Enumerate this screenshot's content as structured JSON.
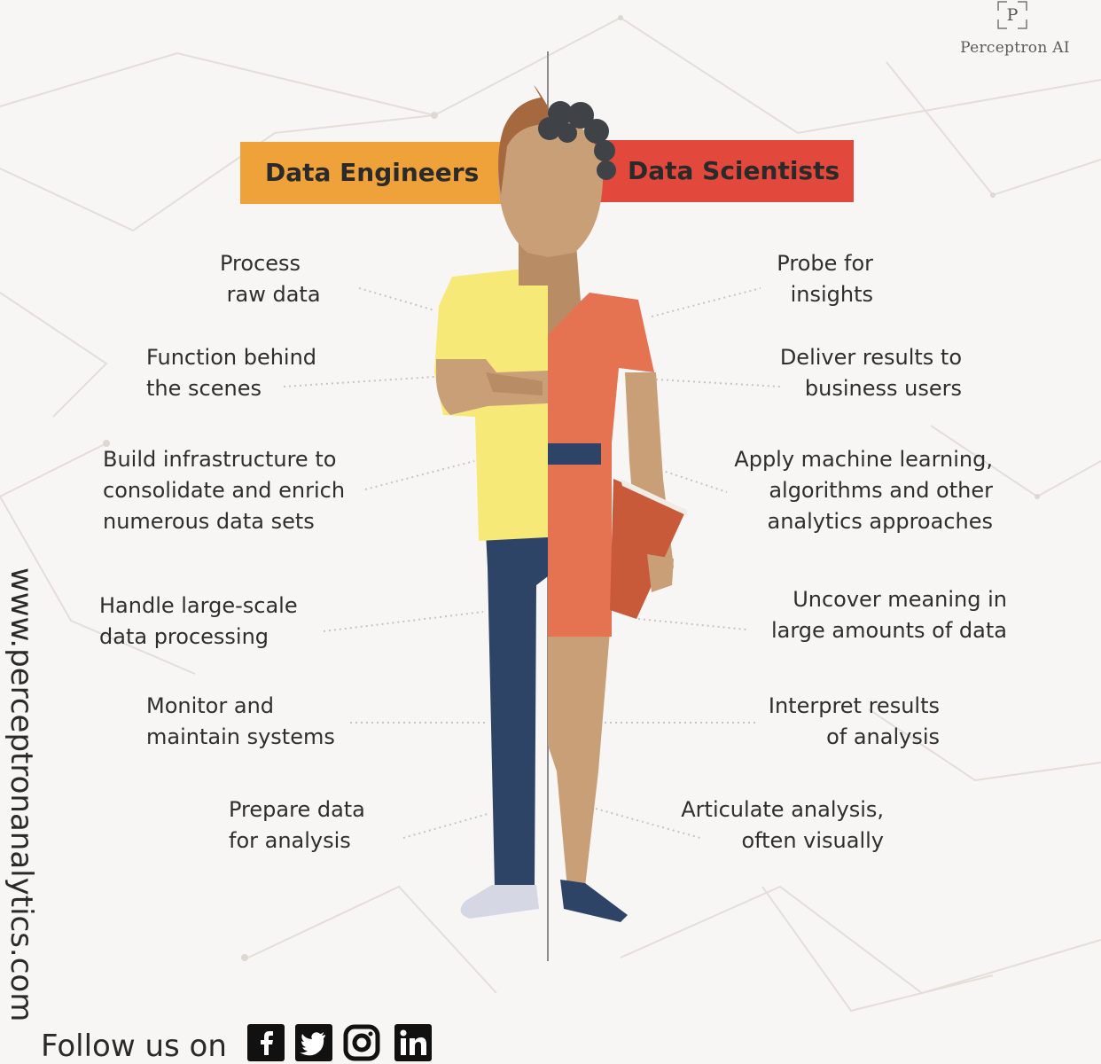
{
  "brand": {
    "logo_letter": "P",
    "name": "Perceptron AI"
  },
  "banners": {
    "left": "Data Engineers",
    "right": "Data Scientists"
  },
  "engineers": [
    "Process\n raw data",
    "Function behind\nthe scenes",
    "Build infrastructure to\nconsolidate and enrich\nnumerous data sets",
    "Handle large-scale\ndata processing",
    "Monitor and\nmaintain systems",
    "Prepare data\nfor analysis"
  ],
  "scientists": [
    "Probe for\ninsights",
    "Deliver results to\nbusiness users",
    "Apply machine learning,\nalgorithms and other\nanalytics approaches",
    "Uncover meaning in\nlarge amounts of data",
    "Interpret results\nof analysis",
    "Articulate analysis,\noften visually"
  ],
  "footer": {
    "website": "www.perceptronanalytics.com",
    "follow_text": "Follow us on",
    "social_icons": [
      "facebook-icon",
      "twitter-icon",
      "instagram-icon",
      "linkedin-icon"
    ]
  },
  "colors": {
    "engineer_banner": "#f0a23a",
    "scientist_banner": "#e2483b",
    "shirt": "#f6e978",
    "dress": "#e57352",
    "pants": "#2e4466",
    "skin": "#c99f78",
    "folder": "#c85a3a"
  }
}
